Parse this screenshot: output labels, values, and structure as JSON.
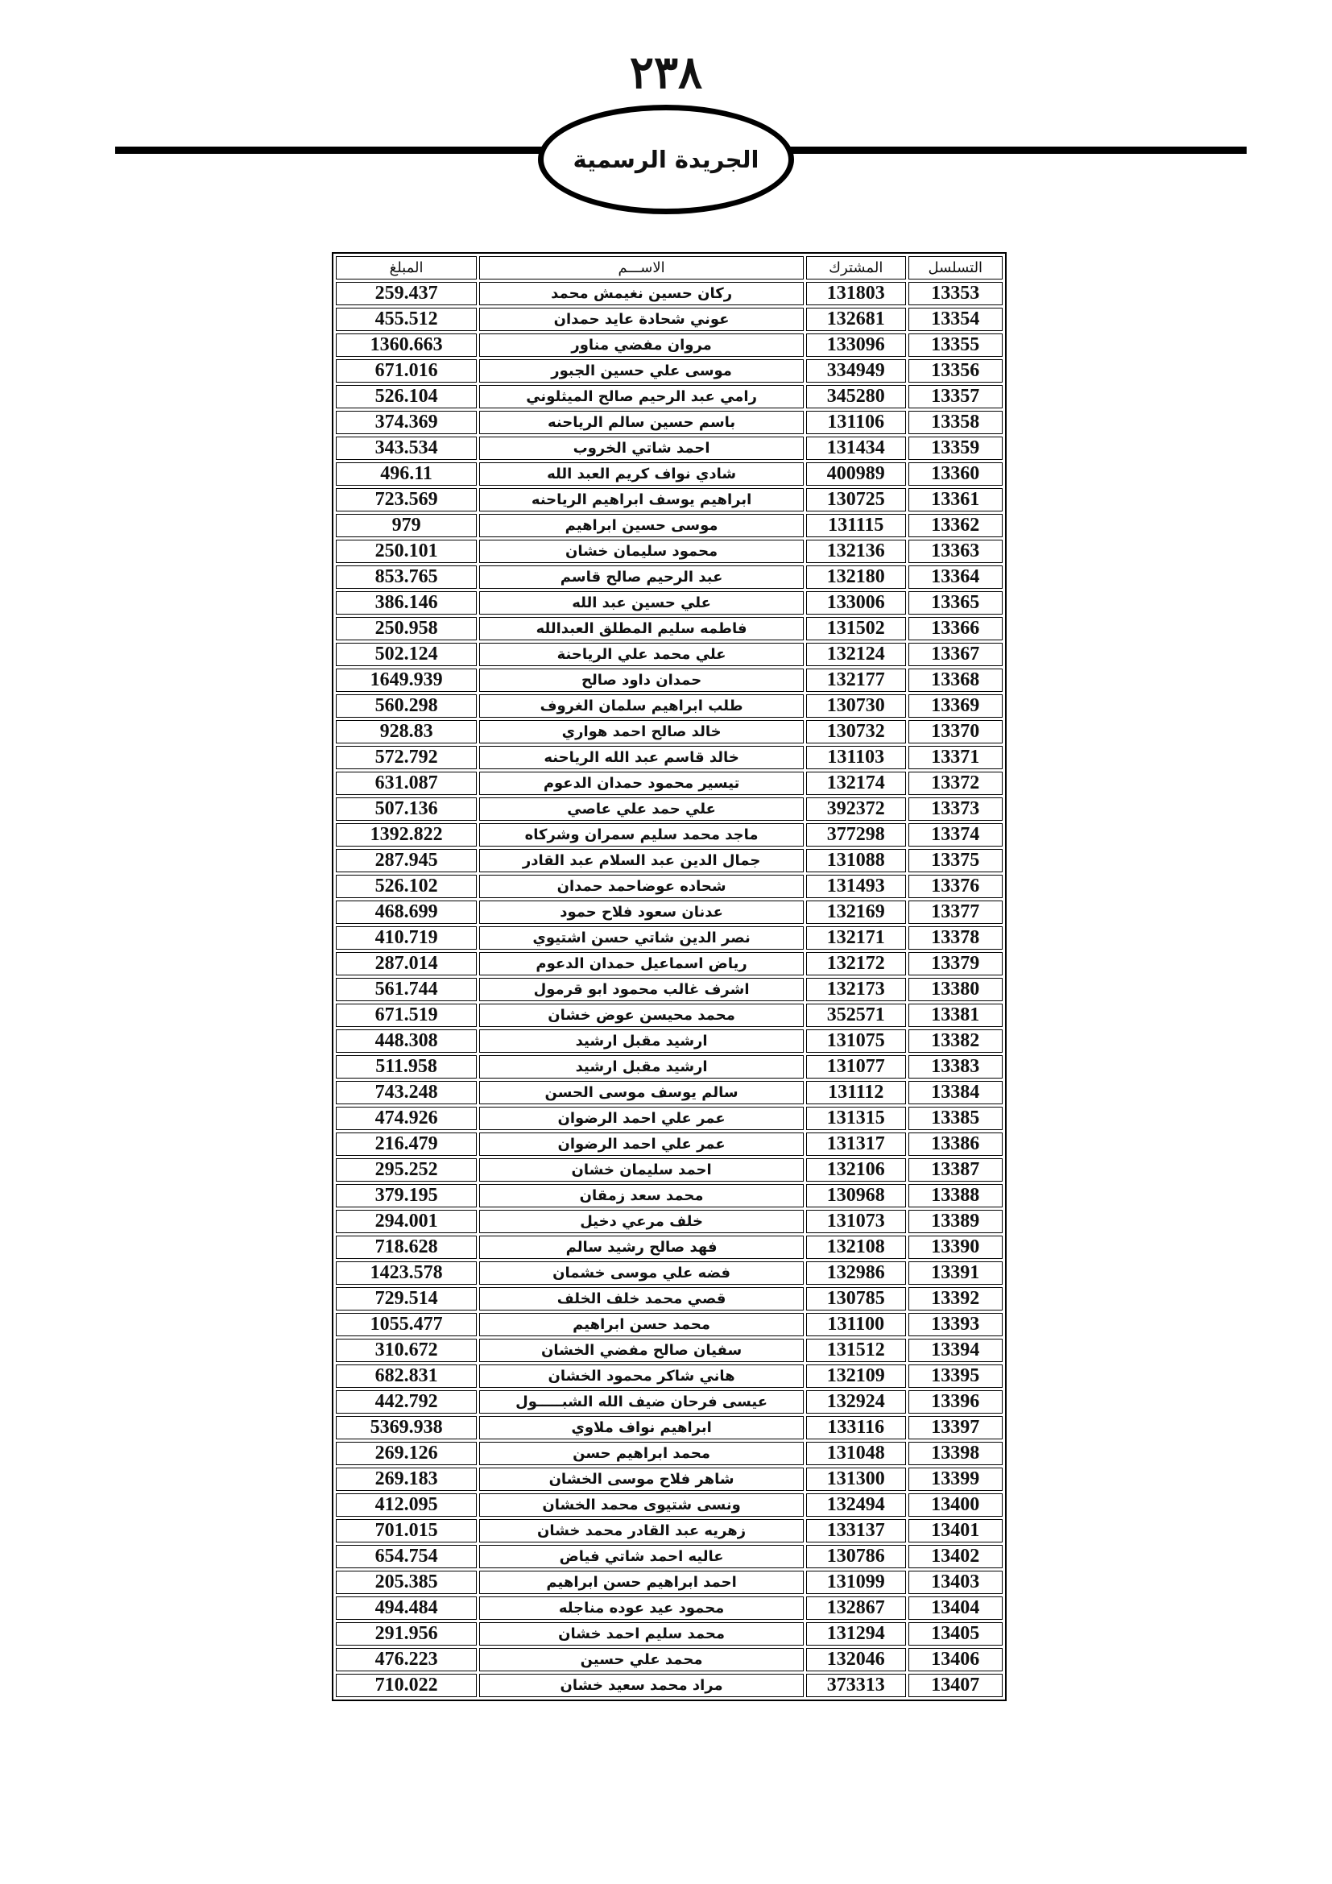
{
  "header": {
    "page_number": "٢٣٨",
    "title": "الجريدة الرسمية"
  },
  "table": {
    "columns": {
      "serial": "التسلسل",
      "subscriber": "المشترك",
      "name": "الاســـم",
      "amount": "المبلغ"
    },
    "rows": [
      [
        "13353",
        "131803",
        "ركان حسين نغيمش محمد",
        "259.437"
      ],
      [
        "13354",
        "132681",
        "عوني شحادة عايد حمدان",
        "455.512"
      ],
      [
        "13355",
        "133096",
        "مروان مفضي مناور",
        "1360.663"
      ],
      [
        "13356",
        "334949",
        "موسى علي حسين الجبور",
        "671.016"
      ],
      [
        "13357",
        "345280",
        "رامي عبد الرحيم صالح الميثلوني",
        "526.104"
      ],
      [
        "13358",
        "131106",
        "باسم حسين سالم الرياحنه",
        "374.369"
      ],
      [
        "13359",
        "131434",
        "احمد شاتي الخروب",
        "343.534"
      ],
      [
        "13360",
        "400989",
        "شادي نواف كريم العبد الله",
        "496.11"
      ],
      [
        "13361",
        "130725",
        "ابراهيم يوسف ابراهيم الرياحنه",
        "723.569"
      ],
      [
        "13362",
        "131115",
        "موسى حسين ابراهيم",
        "979"
      ],
      [
        "13363",
        "132136",
        "محمود سليمان خشان",
        "250.101"
      ],
      [
        "13364",
        "132180",
        "عبد الرحيم صالح قاسم",
        "853.765"
      ],
      [
        "13365",
        "133006",
        "علي حسين عبد الله",
        "386.146"
      ],
      [
        "13366",
        "131502",
        "فاطمه سليم المطلق العبدالله",
        "250.958"
      ],
      [
        "13367",
        "132124",
        "علي محمد علي الرياحنة",
        "502.124"
      ],
      [
        "13368",
        "132177",
        "حمدان داود صالح",
        "1649.939"
      ],
      [
        "13369",
        "130730",
        "طلب ابراهيم سلمان الغروف",
        "560.298"
      ],
      [
        "13370",
        "130732",
        "خالد صالح احمد هواري",
        "928.83"
      ],
      [
        "13371",
        "131103",
        "خالد قاسم عبد الله الرياحنه",
        "572.792"
      ],
      [
        "13372",
        "132174",
        "تيسير محمود حمدان الدعوم",
        "631.087"
      ],
      [
        "13373",
        "392372",
        "علي حمد علي عاصي",
        "507.136"
      ],
      [
        "13374",
        "377298",
        "ماجد محمد سليم سمران وشركاه",
        "1392.822"
      ],
      [
        "13375",
        "131088",
        "جمال الدين عبد السلام عبد القادر",
        "287.945"
      ],
      [
        "13376",
        "131493",
        "شحاده عوضاحمد حمدان",
        "526.102"
      ],
      [
        "13377",
        "132169",
        "عدنان سعود فلاح حمود",
        "468.699"
      ],
      [
        "13378",
        "132171",
        "نصر الدين شاتي حسن اشتيوي",
        "410.719"
      ],
      [
        "13379",
        "132172",
        "رياض اسماعيل حمدان الدعوم",
        "287.014"
      ],
      [
        "13380",
        "132173",
        "اشرف غالب محمود ابو قرمول",
        "561.744"
      ],
      [
        "13381",
        "352571",
        "محمد محيسن عوض خشان",
        "671.519"
      ],
      [
        "13382",
        "131075",
        "ارشيد مقبل ارشيد",
        "448.308"
      ],
      [
        "13383",
        "131077",
        "ارشيد مقبل ارشيد",
        "511.958"
      ],
      [
        "13384",
        "131112",
        "سالم يوسف موسى الحسن",
        "743.248"
      ],
      [
        "13385",
        "131315",
        "عمر علي احمد الرضوان",
        "474.926"
      ],
      [
        "13386",
        "131317",
        "عمر علي احمد الرضوان",
        "216.479"
      ],
      [
        "13387",
        "132106",
        "احمد سليمان خشان",
        "295.252"
      ],
      [
        "13388",
        "130968",
        "محمد سعد زمقان",
        "379.195"
      ],
      [
        "13389",
        "131073",
        "خلف  مرعي دخيل",
        "294.001"
      ],
      [
        "13390",
        "132108",
        "فهد صالح رشيد سالم",
        "718.628"
      ],
      [
        "13391",
        "132986",
        "فضه علي موسى خشمان",
        "1423.578"
      ],
      [
        "13392",
        "130785",
        "قصي محمد خلف الخلف",
        "729.514"
      ],
      [
        "13393",
        "131100",
        "محمد حسن ابراهيم",
        "1055.477"
      ],
      [
        "13394",
        "131512",
        "سفيان صالح مفضي الخشان",
        "310.672"
      ],
      [
        "13395",
        "132109",
        "هاني شاكر محمود الخشان",
        "682.831"
      ],
      [
        "13396",
        "132924",
        "عيسى فرحان ضيف الله الشبـــــول",
        "442.792"
      ],
      [
        "13397",
        "133116",
        "ابراهيم نواف ملاوي",
        "5369.938"
      ],
      [
        "13398",
        "131048",
        "محمد ابراهيم حسن",
        "269.126"
      ],
      [
        "13399",
        "131300",
        "شاهر فلاح موسى الخشان",
        "269.183"
      ],
      [
        "13400",
        "132494",
        "ونسى شتيوى محمد الخشان",
        "412.095"
      ],
      [
        "13401",
        "133137",
        "زهريه عبد القادر محمد خشان",
        "701.015"
      ],
      [
        "13402",
        "130786",
        "عاليه احمد شاتي فياض",
        "654.754"
      ],
      [
        "13403",
        "131099",
        "احمد ابراهيم حسن ابراهيم",
        "205.385"
      ],
      [
        "13404",
        "132867",
        "محمود عيد عوده مناجله",
        "494.484"
      ],
      [
        "13405",
        "131294",
        "محمد سليم احمد خشان",
        "291.956"
      ],
      [
        "13406",
        "132046",
        "محمد علي حسين",
        "476.223"
      ],
      [
        "13407",
        "373313",
        "مراد محمد سعيد خشان",
        "710.022"
      ]
    ]
  }
}
